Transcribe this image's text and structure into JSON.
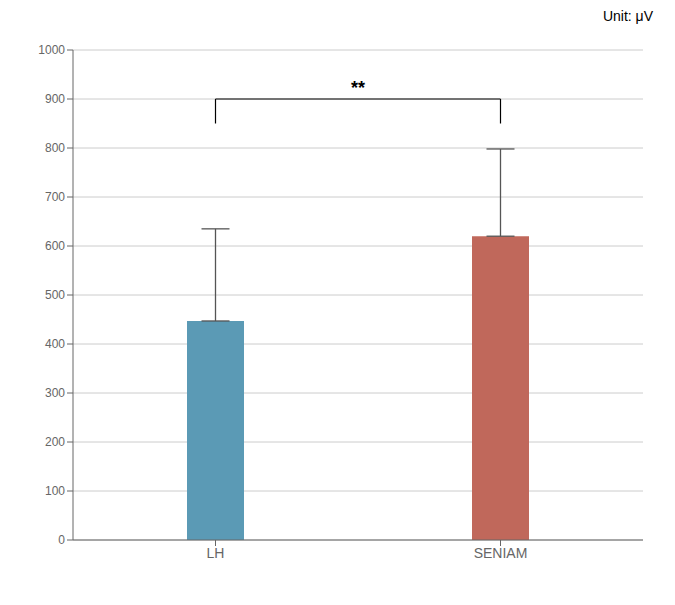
{
  "chart_data": {
    "type": "bar",
    "categories": [
      "LH",
      "SENIAM"
    ],
    "values": [
      447,
      620
    ],
    "errors_up": [
      188,
      178
    ],
    "colors": [
      "#5b9ab5",
      "#c0685b"
    ],
    "ylim": [
      0,
      1000
    ],
    "yticks": [
      0,
      100,
      200,
      300,
      400,
      500,
      600,
      700,
      800,
      900,
      1000
    ],
    "grid": true,
    "annotations": [
      {
        "text": "**",
        "from": "LH",
        "to": "SENIAM",
        "y": 900,
        "y_bottom": 850
      },
      {
        "text": "Unit: μV"
      }
    ]
  }
}
